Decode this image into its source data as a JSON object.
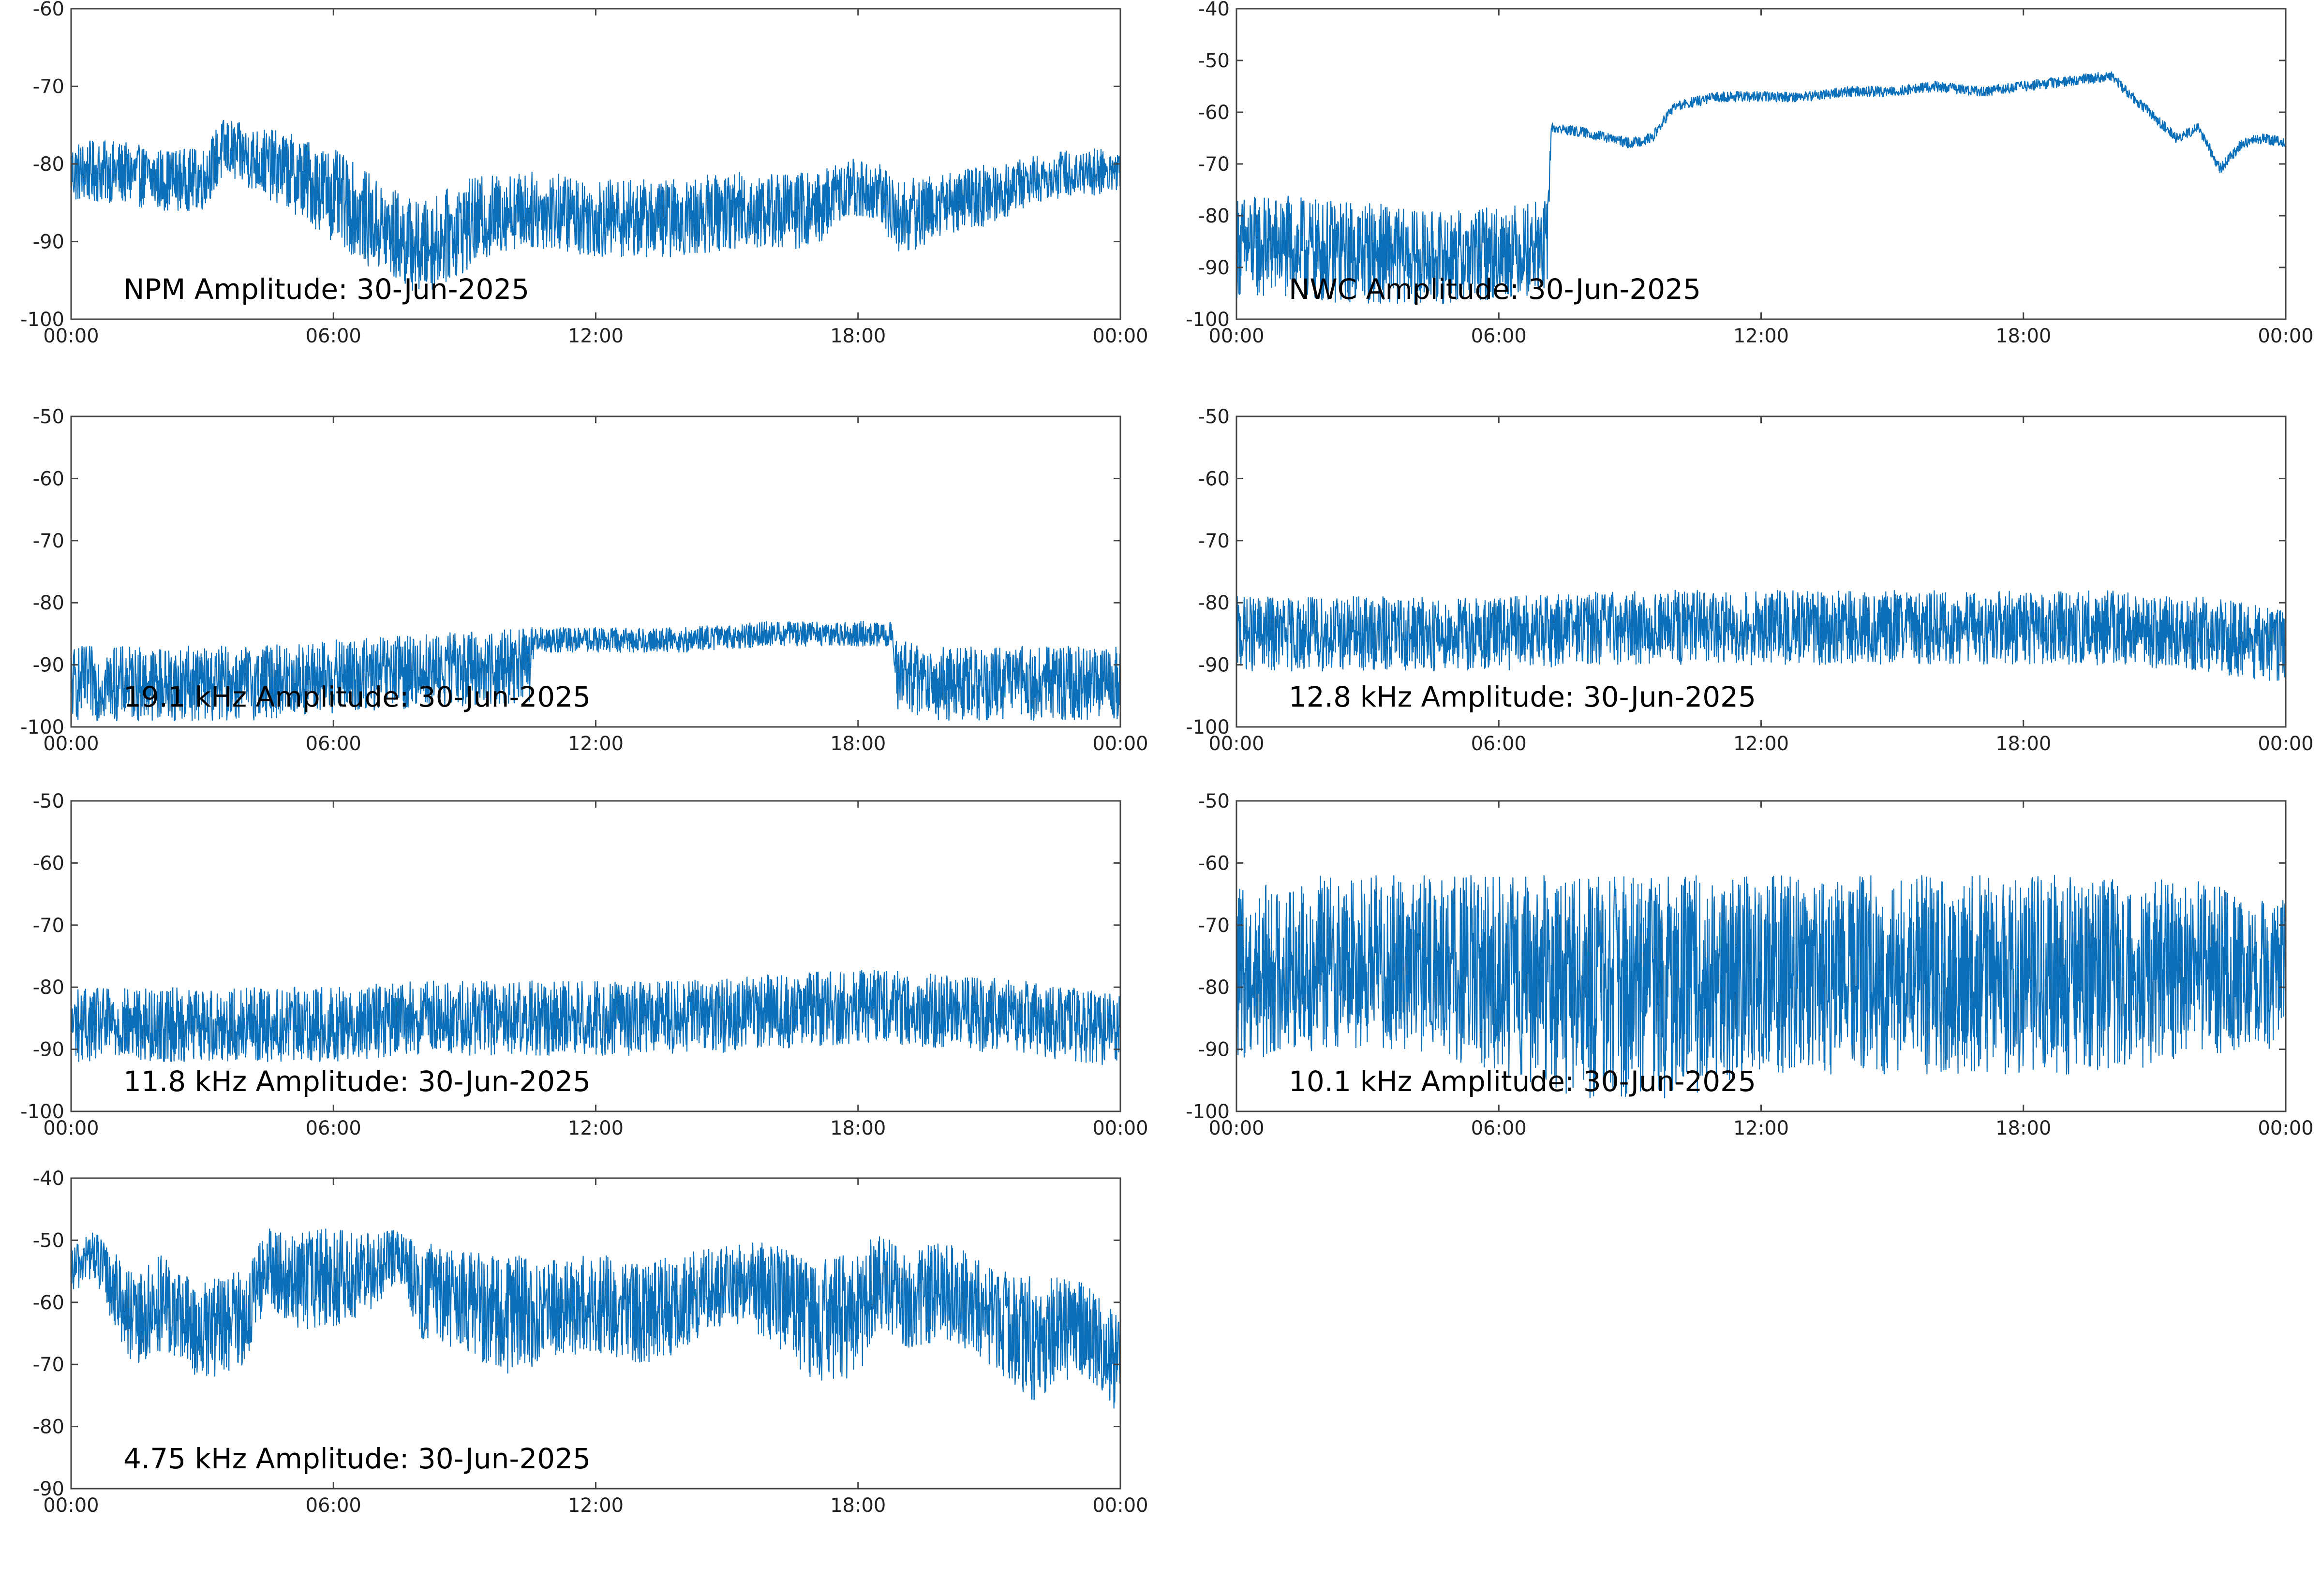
{
  "figure": {
    "background": "#ffffff",
    "line_color": "#0b6fba"
  },
  "chart_data": [
    {
      "type": "line",
      "title": "NPM Amplitude: 30-Jun-2025",
      "x_ticks": [
        "00:00",
        "06:00",
        "12:00",
        "18:00",
        "00:00"
      ],
      "xlim_hours": [
        0,
        24
      ],
      "ylim": [
        -100,
        -60
      ],
      "y_ticks": [
        -60,
        -70,
        -80,
        -90,
        -100
      ],
      "grid": false,
      "series": [
        {
          "x_hours": [
            0,
            1,
            2,
            3,
            3.5,
            4,
            5,
            6,
            7,
            8,
            9,
            10,
            11,
            12,
            13,
            14,
            15,
            16,
            17,
            17.5,
            18,
            18.5,
            19,
            20,
            21,
            22,
            23,
            24
          ],
          "y": [
            -81,
            -81,
            -82,
            -82,
            -78,
            -79,
            -81,
            -84,
            -88,
            -91,
            -88,
            -86,
            -86,
            -87,
            -87,
            -87,
            -86,
            -86,
            -86,
            -84,
            -83,
            -84,
            -87,
            -85,
            -84,
            -82,
            -81,
            -81
          ],
          "spread": [
            4,
            4,
            4,
            4,
            4,
            4,
            5,
            6,
            6,
            6,
            6,
            5,
            5,
            5,
            5,
            5,
            5,
            5,
            5,
            4,
            4,
            4,
            5,
            4,
            4,
            3,
            3,
            3
          ]
        }
      ]
    },
    {
      "type": "line",
      "title": "NWC Amplitude: 30-Jun-2025",
      "x_ticks": [
        "00:00",
        "06:00",
        "12:00",
        "18:00",
        "00:00"
      ],
      "xlim_hours": [
        0,
        24
      ],
      "ylim": [
        -100,
        -40
      ],
      "y_ticks": [
        -40,
        -50,
        -60,
        -70,
        -80,
        -90,
        -100
      ],
      "grid": false,
      "series": [
        {
          "x_hours": [
            0,
            1,
            2,
            3,
            4,
            5,
            6,
            7.1,
            7.2,
            8,
            9,
            9.5,
            10,
            11,
            12,
            13,
            14,
            15,
            16,
            17,
            18,
            19,
            20,
            21,
            21.5,
            22,
            22.5,
            23,
            23.5,
            24
          ],
          "y": [
            -86,
            -86,
            -87,
            -87,
            -88,
            -88,
            -87,
            -86,
            -63,
            -64,
            -66,
            -65,
            -59,
            -57,
            -57,
            -57,
            -56,
            -56,
            -55,
            -56,
            -55,
            -54,
            -53,
            -61,
            -65,
            -63,
            -71,
            -66,
            -65,
            -66
          ],
          "spread": [
            10,
            10,
            10,
            10,
            9,
            9,
            9,
            9,
            1,
            1,
            1,
            1,
            1,
            1,
            1,
            1,
            1,
            1,
            1,
            1,
            1,
            1,
            1,
            1,
            1,
            1,
            1,
            1,
            1,
            1
          ]
        }
      ]
    },
    {
      "type": "line",
      "title": "19.1 kHz Amplitude: 30-Jun-2025",
      "x_ticks": [
        "00:00",
        "06:00",
        "12:00",
        "18:00",
        "00:00"
      ],
      "xlim_hours": [
        0,
        24
      ],
      "ylim": [
        -100,
        -50
      ],
      "y_ticks": [
        -50,
        -60,
        -70,
        -80,
        -90,
        -100
      ],
      "grid": false,
      "series": [
        {
          "x_hours": [
            0,
            2,
            4,
            6,
            8,
            10.5,
            10.6,
            12,
            14,
            16,
            18,
            18.8,
            18.9,
            20,
            22,
            24
          ],
          "y": [
            -93,
            -93,
            -93,
            -92,
            -91,
            -90,
            -86,
            -86,
            -86,
            -85,
            -85,
            -85,
            -92,
            -93,
            -93,
            -93
          ],
          "spread": [
            6,
            6,
            6,
            6,
            6,
            6,
            2,
            2,
            2,
            2,
            2,
            2,
            6,
            6,
            6,
            6
          ]
        }
      ]
    },
    {
      "type": "line",
      "title": "12.8 kHz Amplitude: 30-Jun-2025",
      "x_ticks": [
        "00:00",
        "06:00",
        "12:00",
        "18:00",
        "00:00"
      ],
      "xlim_hours": [
        0,
        24
      ],
      "ylim": [
        -100,
        -50
      ],
      "y_ticks": [
        -50,
        -60,
        -70,
        -80,
        -90,
        -100
      ],
      "grid": false,
      "series": [
        {
          "x_hours": [
            0,
            2,
            4,
            6,
            8,
            10,
            12,
            14,
            16,
            18,
            20,
            22,
            24
          ],
          "y": [
            -85,
            -85,
            -85,
            -85,
            -84,
            -84,
            -84,
            -84,
            -84,
            -84,
            -84,
            -85,
            -87
          ],
          "spread": [
            6,
            6,
            6,
            6,
            6,
            6,
            6,
            6,
            6,
            6,
            6,
            6,
            6
          ]
        }
      ]
    },
    {
      "type": "line",
      "title": "11.8 kHz Amplitude: 30-Jun-2025",
      "x_ticks": [
        "00:00",
        "06:00",
        "12:00",
        "18:00",
        "00:00"
      ],
      "xlim_hours": [
        0,
        24
      ],
      "ylim": [
        -100,
        -50
      ],
      "y_ticks": [
        -50,
        -60,
        -70,
        -80,
        -90,
        -100
      ],
      "grid": false,
      "series": [
        {
          "x_hours": [
            0,
            2,
            4,
            6,
            8,
            10,
            12,
            14,
            16,
            18,
            20,
            22,
            24
          ],
          "y": [
            -86,
            -86,
            -86,
            -86,
            -85,
            -85,
            -85,
            -85,
            -84,
            -83,
            -84,
            -85,
            -87
          ],
          "spread": [
            6,
            6,
            6,
            6,
            6,
            6,
            6,
            6,
            6,
            6,
            6,
            6,
            6
          ]
        }
      ]
    },
    {
      "type": "line",
      "title": "10.1 kHz Amplitude: 30-Jun-2025",
      "x_ticks": [
        "00:00",
        "06:00",
        "12:00",
        "18:00",
        "00:00"
      ],
      "xlim_hours": [
        0,
        24
      ],
      "ylim": [
        -100,
        -50
      ],
      "y_ticks": [
        -50,
        -60,
        -70,
        -80,
        -90,
        -100
      ],
      "grid": false,
      "series": [
        {
          "x_hours": [
            0,
            2,
            4,
            6,
            8,
            10,
            12,
            14,
            16,
            18,
            20,
            22,
            24
          ],
          "y": [
            -78,
            -76,
            -76,
            -78,
            -80,
            -80,
            -78,
            -78,
            -78,
            -78,
            -78,
            -77,
            -78
          ],
          "spread": [
            14,
            14,
            14,
            16,
            18,
            18,
            16,
            16,
            16,
            16,
            16,
            14,
            12
          ]
        }
      ]
    },
    {
      "type": "line",
      "title": "4.75 kHz Amplitude: 30-Jun-2025",
      "x_ticks": [
        "00:00",
        "06:00",
        "12:00",
        "18:00",
        "00:00"
      ],
      "xlim_hours": [
        0,
        24
      ],
      "ylim": [
        -90,
        -40
      ],
      "y_ticks": [
        -40,
        -50,
        -60,
        -70,
        -80,
        -90
      ],
      "grid": false,
      "series": [
        {
          "x_hours": [
            0,
            0.5,
            1,
            1.5,
            2,
            3,
            4,
            4.5,
            5,
            6,
            7,
            7.5,
            8,
            9,
            10,
            11,
            12,
            13,
            14,
            15,
            16,
            17,
            18,
            18.5,
            19,
            20,
            21,
            22,
            23,
            24
          ],
          "y": [
            -55,
            -52,
            -58,
            -64,
            -60,
            -65,
            -62,
            -54,
            -57,
            -56,
            -55,
            -52,
            -58,
            -60,
            -62,
            -61,
            -60,
            -62,
            -60,
            -57,
            -58,
            -63,
            -62,
            -56,
            -60,
            -58,
            -62,
            -66,
            -64,
            -70
          ],
          "spread": [
            4,
            4,
            6,
            8,
            8,
            8,
            8,
            6,
            8,
            8,
            6,
            4,
            8,
            8,
            10,
            8,
            8,
            8,
            8,
            6,
            8,
            10,
            10,
            8,
            8,
            8,
            8,
            10,
            8,
            8
          ]
        }
      ]
    }
  ]
}
